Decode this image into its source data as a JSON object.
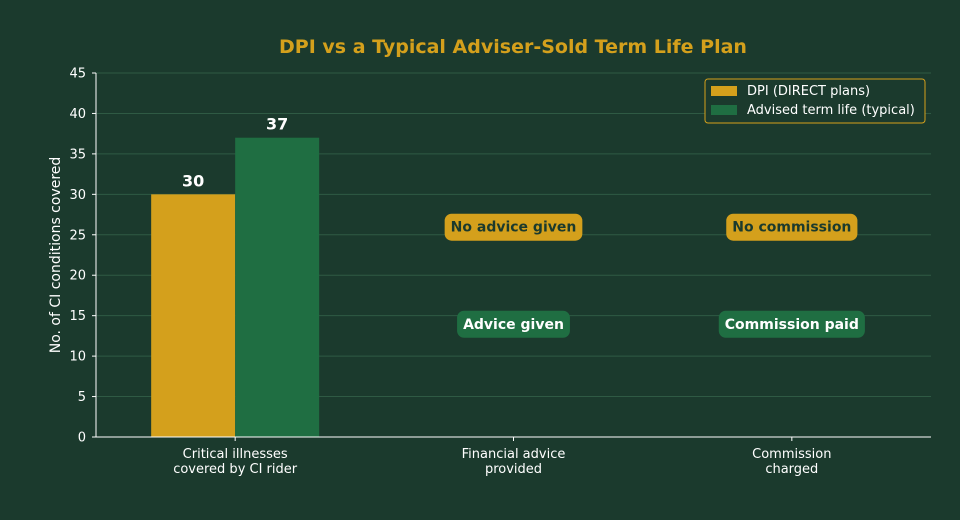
{
  "colors": {
    "background": "#1b3a2d",
    "dpi": "#d4a01c",
    "advised": "#1f6e42",
    "title": "#d4a01c",
    "grid": "#2f5a44",
    "axis": "#ffffff",
    "text": "#ffffff",
    "badge_dark_text": "#1b3a2d"
  },
  "chart_data": {
    "type": "bar",
    "title": "DPI vs a Typical Adviser-Sold Term Life Plan",
    "xlabel": "",
    "ylabel": "No. of CI conditions covered",
    "ylim": [
      0,
      45
    ],
    "yticks": [
      0,
      5,
      10,
      15,
      20,
      25,
      30,
      35,
      40,
      45
    ],
    "grid": true,
    "legend_position": "top-right",
    "categories": [
      [
        "Critical illnesses",
        "covered by CI rider"
      ],
      [
        "Financial advice",
        "provided"
      ],
      [
        "Commission",
        "charged"
      ]
    ],
    "series": [
      {
        "name": "DPI (DIRECT plans)",
        "values": [
          30,
          null,
          null
        ],
        "color_key": "dpi"
      },
      {
        "name": "Advised term life (typical)",
        "values": [
          37,
          null,
          null
        ],
        "color_key": "advised"
      }
    ],
    "data_labels": [
      "30",
      "37"
    ],
    "annotations": [
      {
        "category_index": 1,
        "y": 26,
        "text": "No advice given",
        "style": "dpi"
      },
      {
        "category_index": 1,
        "y": 14,
        "text": "Advice given",
        "style": "advised"
      },
      {
        "category_index": 2,
        "y": 26,
        "text": "No commission",
        "style": "dpi"
      },
      {
        "category_index": 2,
        "y": 14,
        "text": "Commission paid",
        "style": "advised"
      }
    ]
  }
}
